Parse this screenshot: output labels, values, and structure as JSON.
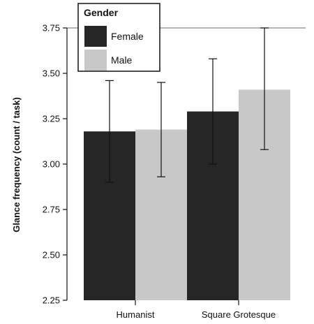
{
  "chart_data": {
    "type": "bar",
    "categories": [
      "Humanist",
      "Square Grotesque"
    ],
    "series": [
      {
        "name": "Female",
        "color": "#262626",
        "values": [
          3.18,
          3.29
        ],
        "error_low": [
          2.9,
          3.0
        ],
        "error_high": [
          3.46,
          3.58
        ]
      },
      {
        "name": "Male",
        "color": "#c8c8c8",
        "values": [
          3.19,
          3.41
        ],
        "error_low": [
          2.93,
          3.08
        ],
        "error_high": [
          3.45,
          3.75
        ]
      }
    ],
    "ylabel": "Glance frequency (count / task)",
    "xlabel": "",
    "ylim": [
      2.25,
      3.75
    ],
    "yticks": [
      "2.25",
      "2.50",
      "2.75",
      "3.00",
      "3.25",
      "3.50",
      "3.75"
    ],
    "grid": false,
    "reference_line_at": 3.75,
    "legend": {
      "title": "Gender",
      "position": "top-left",
      "items": [
        "Female",
        "Male"
      ]
    }
  }
}
